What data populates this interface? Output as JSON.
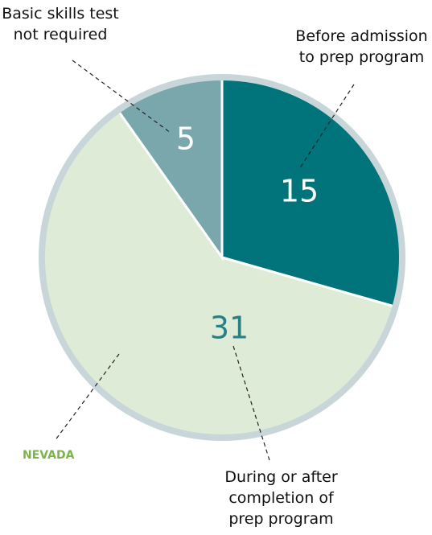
{
  "chart_data": {
    "type": "pie",
    "categories": [
      "Before admission to prep program",
      "During or after completion of prep program",
      "Basic skills test not required"
    ],
    "values": [
      15,
      31,
      5
    ],
    "colors": [
      "#00747a",
      "#ddebd7",
      "#79a7ab"
    ],
    "label_colors": [
      "#ffffff",
      "#2a7f85",
      "#ffffff"
    ],
    "annotation": "NEVADA"
  }
}
